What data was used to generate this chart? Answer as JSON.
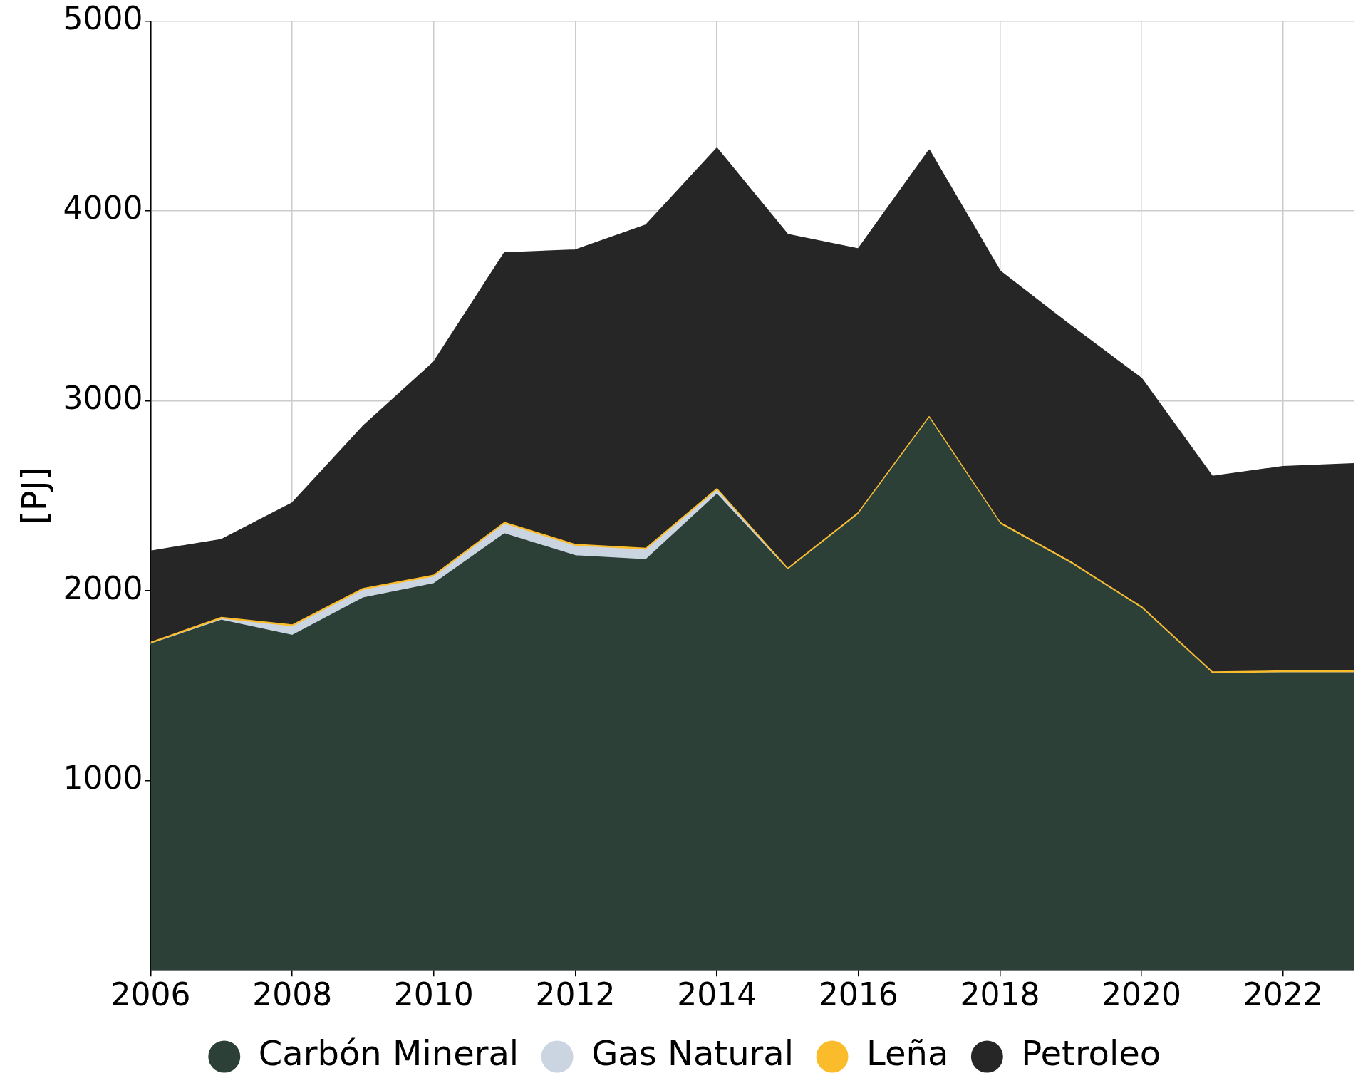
{
  "chart_data": {
    "type": "area",
    "stacked": true,
    "ylabel": "[PJ]",
    "x": [
      2006,
      2007,
      2008,
      2009,
      2010,
      2011,
      2012,
      2013,
      2014,
      2015,
      2016,
      2017,
      2018,
      2019,
      2020,
      2021,
      2022,
      2023
    ],
    "xlim": [
      2006,
      2023
    ],
    "xticks": [
      2006,
      2008,
      2010,
      2012,
      2014,
      2016,
      2018,
      2020,
      2022
    ],
    "ylim": [
      0,
      5000
    ],
    "yticks": [
      1000,
      2000,
      3000,
      4000,
      5000
    ],
    "grid": true,
    "legend": "bottom",
    "marker": "none",
    "line_style": "solid",
    "series": [
      {
        "name": "Carbón Mineral",
        "color": "#2c4037",
        "values": [
          1717,
          1843,
          1763,
          1960,
          2035,
          2298,
          2182,
          2162,
          2505,
          2106,
          2399,
          2904,
          2348,
          2141,
          1904,
          1561,
          1566,
          1566
        ]
      },
      {
        "name": "Gas Natural",
        "color": "#cbd5e1",
        "values": [
          0,
          5,
          45,
          40,
          35,
          50,
          50,
          50,
          20,
          0,
          0,
          0,
          0,
          0,
          0,
          0,
          0,
          0
        ]
      },
      {
        "name": "Leña",
        "color": "#fbbc2b",
        "values": [
          10,
          10,
          10,
          10,
          10,
          10,
          10,
          10,
          10,
          10,
          10,
          10,
          10,
          10,
          10,
          10,
          10,
          10
        ]
      },
      {
        "name": "Petroleo",
        "color": "#262626",
        "values": [
          480,
          410,
          642,
          854,
          1122,
          1420,
          1551,
          1702,
          1793,
          1758,
          1389,
          1404,
          1324,
          1243,
          1202,
          1030,
          1076,
          1091
        ]
      }
    ]
  }
}
